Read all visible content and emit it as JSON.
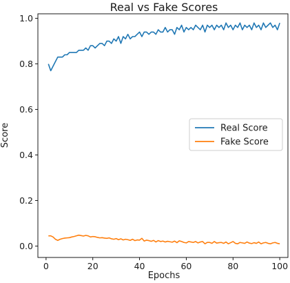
{
  "chart_data": {
    "type": "line",
    "title": "Real vs Fake Scores",
    "xlabel": "Epochs",
    "ylabel": "Score",
    "xlim": [
      -3.5,
      103.5
    ],
    "ylim": [
      -0.05,
      1.02
    ],
    "xticks": [
      0,
      20,
      40,
      60,
      80,
      100
    ],
    "yticks": [
      0.0,
      0.2,
      0.4,
      0.6,
      0.8,
      1.0
    ],
    "xtick_labels": [
      "0",
      "20",
      "40",
      "60",
      "80",
      "100"
    ],
    "ytick_labels": [
      "0.0",
      "0.2",
      "0.4",
      "0.6",
      "0.8",
      "1.0"
    ],
    "grid": false,
    "legend_position": "center-right",
    "x": [
      1,
      2,
      3,
      4,
      5,
      6,
      7,
      8,
      9,
      10,
      11,
      12,
      13,
      14,
      15,
      16,
      17,
      18,
      19,
      20,
      21,
      22,
      23,
      24,
      25,
      26,
      27,
      28,
      29,
      30,
      31,
      32,
      33,
      34,
      35,
      36,
      37,
      38,
      39,
      40,
      41,
      42,
      43,
      44,
      45,
      46,
      47,
      48,
      49,
      50,
      51,
      52,
      53,
      54,
      55,
      56,
      57,
      58,
      59,
      60,
      61,
      62,
      63,
      64,
      65,
      66,
      67,
      68,
      69,
      70,
      71,
      72,
      73,
      74,
      75,
      76,
      77,
      78,
      79,
      80,
      81,
      82,
      83,
      84,
      85,
      86,
      87,
      88,
      89,
      90,
      91,
      92,
      93,
      94,
      95,
      96,
      97,
      98,
      99,
      100
    ],
    "series": [
      {
        "name": "Real Score",
        "color": "#1f77b4",
        "values": [
          0.8,
          0.77,
          0.79,
          0.81,
          0.83,
          0.83,
          0.83,
          0.84,
          0.84,
          0.85,
          0.85,
          0.85,
          0.85,
          0.86,
          0.86,
          0.86,
          0.87,
          0.86,
          0.88,
          0.88,
          0.87,
          0.88,
          0.89,
          0.89,
          0.88,
          0.9,
          0.9,
          0.89,
          0.91,
          0.9,
          0.92,
          0.89,
          0.92,
          0.91,
          0.93,
          0.91,
          0.92,
          0.92,
          0.93,
          0.94,
          0.92,
          0.94,
          0.94,
          0.93,
          0.94,
          0.94,
          0.93,
          0.95,
          0.94,
          0.94,
          0.96,
          0.94,
          0.95,
          0.95,
          0.93,
          0.96,
          0.95,
          0.97,
          0.94,
          0.96,
          0.95,
          0.96,
          0.95,
          0.97,
          0.96,
          0.95,
          0.97,
          0.94,
          0.97,
          0.96,
          0.97,
          0.95,
          0.97,
          0.96,
          0.97,
          0.95,
          0.98,
          0.96,
          0.97,
          0.95,
          0.97,
          0.96,
          0.98,
          0.95,
          0.97,
          0.96,
          0.97,
          0.95,
          0.98,
          0.96,
          0.97,
          0.95,
          0.98,
          0.96,
          0.97,
          0.98,
          0.96,
          0.97,
          0.95,
          0.98
        ]
      },
      {
        "name": "Fake Score",
        "color": "#ff7f0e",
        "values": [
          0.045,
          0.045,
          0.04,
          0.03,
          0.025,
          0.03,
          0.033,
          0.035,
          0.036,
          0.037,
          0.04,
          0.042,
          0.045,
          0.048,
          0.046,
          0.044,
          0.047,
          0.045,
          0.04,
          0.042,
          0.041,
          0.038,
          0.036,
          0.037,
          0.035,
          0.034,
          0.036,
          0.032,
          0.03,
          0.033,
          0.028,
          0.032,
          0.027,
          0.03,
          0.028,
          0.025,
          0.03,
          0.024,
          0.027,
          0.026,
          0.034,
          0.022,
          0.026,
          0.024,
          0.021,
          0.025,
          0.018,
          0.024,
          0.02,
          0.022,
          0.018,
          0.021,
          0.019,
          0.017,
          0.022,
          0.015,
          0.023,
          0.02,
          0.016,
          0.014,
          0.02,
          0.018,
          0.016,
          0.02,
          0.014,
          0.018,
          0.02,
          0.01,
          0.016,
          0.016,
          0.012,
          0.02,
          0.013,
          0.015,
          0.016,
          0.012,
          0.018,
          0.01,
          0.015,
          0.02,
          0.012,
          0.01,
          0.016,
          0.014,
          0.012,
          0.018,
          0.013,
          0.011,
          0.015,
          0.012,
          0.018,
          0.01,
          0.014,
          0.016,
          0.012,
          0.01,
          0.014,
          0.016,
          0.012,
          0.01
        ]
      }
    ]
  }
}
